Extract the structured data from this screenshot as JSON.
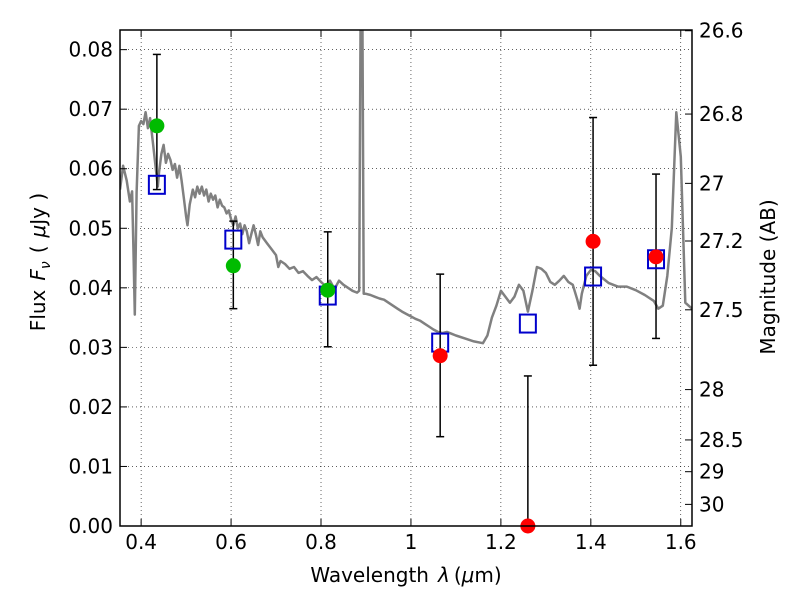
{
  "chart_data": {
    "type": "scatter",
    "xlabel_text": "Wavelength",
    "xlabel_symbol": "λ",
    "xlabel_unit_open": "(",
    "xlabel_unit_mu": "μ",
    "xlabel_unit_rest": "m)",
    "ylabel_text": "Flux",
    "ylabel_symbol": "F",
    "ylabel_sub": "ν",
    "ylabel_unit_open": "(",
    "ylabel_unit_mu": "μ",
    "ylabel_unit_rest": "Jy )",
    "y2label": "Magnitude (AB)",
    "xlim": [
      0.353,
      1.625
    ],
    "ylim": [
      0.0,
      0.0833
    ],
    "grid": true,
    "x_ticks": [
      {
        "value": 0.4,
        "label": "0.4"
      },
      {
        "value": 0.6,
        "label": "0.6"
      },
      {
        "value": 0.8,
        "label": "0.8"
      },
      {
        "value": 1.0,
        "label": "1"
      },
      {
        "value": 1.2,
        "label": "1.2"
      },
      {
        "value": 1.4,
        "label": "1.4"
      },
      {
        "value": 1.6,
        "label": "1.6"
      }
    ],
    "y_ticks": [
      {
        "value": 0.0,
        "label": "0.00"
      },
      {
        "value": 0.01,
        "label": "0.01"
      },
      {
        "value": 0.02,
        "label": "0.02"
      },
      {
        "value": 0.03,
        "label": "0.03"
      },
      {
        "value": 0.04,
        "label": "0.04"
      },
      {
        "value": 0.05,
        "label": "0.05"
      },
      {
        "value": 0.06,
        "label": "0.06"
      },
      {
        "value": 0.07,
        "label": "0.07"
      },
      {
        "value": 0.08,
        "label": "0.08"
      }
    ],
    "y2_ticks": [
      {
        "mag": 26.6,
        "label": "26.6"
      },
      {
        "mag": 26.8,
        "label": "26.8"
      },
      {
        "mag": 27.0,
        "label": "27"
      },
      {
        "mag": 27.2,
        "label": "27.2"
      },
      {
        "mag": 27.5,
        "label": "27.5"
      },
      {
        "mag": 28.0,
        "label": "28"
      },
      {
        "mag": 28.5,
        "label": "28.5"
      },
      {
        "mag": 29.0,
        "label": "29"
      },
      {
        "mag": 30.0,
        "label": "30"
      }
    ],
    "model_color": "#808080",
    "model_sed": [
      [
        0.353,
        0.0565
      ],
      [
        0.36,
        0.0605
      ],
      [
        0.368,
        0.058
      ],
      [
        0.375,
        0.0545
      ],
      [
        0.38,
        0.0562
      ],
      [
        0.383,
        0.046
      ],
      [
        0.386,
        0.0355
      ],
      [
        0.39,
        0.056
      ],
      [
        0.395,
        0.0672
      ],
      [
        0.4,
        0.068
      ],
      [
        0.405,
        0.0675
      ],
      [
        0.41,
        0.0695
      ],
      [
        0.415,
        0.0668
      ],
      [
        0.42,
        0.0685
      ],
      [
        0.427,
        0.0638
      ],
      [
        0.432,
        0.0605
      ],
      [
        0.437,
        0.057
      ],
      [
        0.44,
        0.0595
      ],
      [
        0.445,
        0.0625
      ],
      [
        0.45,
        0.064
      ],
      [
        0.455,
        0.061
      ],
      [
        0.46,
        0.0625
      ],
      [
        0.465,
        0.0615
      ],
      [
        0.47,
        0.0598
      ],
      [
        0.475,
        0.0608
      ],
      [
        0.48,
        0.0585
      ],
      [
        0.485,
        0.0605
      ],
      [
        0.49,
        0.058
      ],
      [
        0.495,
        0.055
      ],
      [
        0.5,
        0.052
      ],
      [
        0.503,
        0.0505
      ],
      [
        0.508,
        0.054
      ],
      [
        0.515,
        0.0565
      ],
      [
        0.52,
        0.0552
      ],
      [
        0.525,
        0.057
      ],
      [
        0.53,
        0.0558
      ],
      [
        0.535,
        0.057
      ],
      [
        0.54,
        0.0555
      ],
      [
        0.545,
        0.0565
      ],
      [
        0.55,
        0.0545
      ],
      [
        0.555,
        0.0558
      ],
      [
        0.56,
        0.0548
      ],
      [
        0.565,
        0.0555
      ],
      [
        0.57,
        0.0535
      ],
      [
        0.575,
        0.0548
      ],
      [
        0.58,
        0.0538
      ],
      [
        0.585,
        0.0535
      ],
      [
        0.59,
        0.0525
      ],
      [
        0.595,
        0.053
      ],
      [
        0.6,
        0.0515
      ],
      [
        0.605,
        0.0505
      ],
      [
        0.61,
        0.052
      ],
      [
        0.615,
        0.05
      ],
      [
        0.62,
        0.0508
      ],
      [
        0.625,
        0.049
      ],
      [
        0.63,
        0.0505
      ],
      [
        0.635,
        0.0495
      ],
      [
        0.64,
        0.0475
      ],
      [
        0.645,
        0.049
      ],
      [
        0.65,
        0.0505
      ],
      [
        0.655,
        0.049
      ],
      [
        0.66,
        0.0472
      ],
      [
        0.665,
        0.0495
      ],
      [
        0.67,
        0.0485
      ],
      [
        0.68,
        0.0475
      ],
      [
        0.69,
        0.0465
      ],
      [
        0.7,
        0.0455
      ],
      [
        0.705,
        0.0435
      ],
      [
        0.71,
        0.0445
      ],
      [
        0.72,
        0.044
      ],
      [
        0.73,
        0.0432
      ],
      [
        0.74,
        0.0435
      ],
      [
        0.75,
        0.0425
      ],
      [
        0.76,
        0.0428
      ],
      [
        0.77,
        0.042
      ],
      [
        0.78,
        0.0413
      ],
      [
        0.79,
        0.0418
      ],
      [
        0.8,
        0.041
      ],
      [
        0.81,
        0.0403
      ],
      [
        0.82,
        0.0412
      ],
      [
        0.83,
        0.0398
      ],
      [
        0.84,
        0.0412
      ],
      [
        0.85,
        0.0405
      ],
      [
        0.86,
        0.04
      ],
      [
        0.87,
        0.0395
      ],
      [
        0.88,
        0.0392
      ],
      [
        0.885,
        0.0395
      ],
      [
        0.888,
        0.086
      ],
      [
        0.892,
        0.086
      ],
      [
        0.895,
        0.039
      ],
      [
        0.9,
        0.039
      ],
      [
        0.91,
        0.0388
      ],
      [
        0.92,
        0.0385
      ],
      [
        0.93,
        0.0382
      ],
      [
        0.94,
        0.038
      ],
      [
        0.95,
        0.0375
      ],
      [
        0.96,
        0.037
      ],
      [
        0.97,
        0.0365
      ],
      [
        0.98,
        0.036
      ],
      [
        0.99,
        0.0356
      ],
      [
        1.0,
        0.0352
      ],
      [
        1.01,
        0.0348
      ],
      [
        1.02,
        0.0345
      ],
      [
        1.03,
        0.034
      ],
      [
        1.04,
        0.0335
      ],
      [
        1.05,
        0.033
      ],
      [
        1.06,
        0.0326
      ],
      [
        1.07,
        0.0324
      ],
      [
        1.08,
        0.0326
      ],
      [
        1.09,
        0.0323
      ],
      [
        1.1,
        0.032
      ],
      [
        1.12,
        0.0315
      ],
      [
        1.14,
        0.031
      ],
      [
        1.16,
        0.0307
      ],
      [
        1.17,
        0.032
      ],
      [
        1.18,
        0.035
      ],
      [
        1.19,
        0.037
      ],
      [
        1.2,
        0.0395
      ],
      [
        1.21,
        0.0385
      ],
      [
        1.22,
        0.0375
      ],
      [
        1.23,
        0.0385
      ],
      [
        1.24,
        0.0405
      ],
      [
        1.25,
        0.0395
      ],
      [
        1.26,
        0.036
      ],
      [
        1.27,
        0.0395
      ],
      [
        1.28,
        0.0435
      ],
      [
        1.29,
        0.0432
      ],
      [
        1.3,
        0.0425
      ],
      [
        1.31,
        0.041
      ],
      [
        1.32,
        0.0405
      ],
      [
        1.33,
        0.0412
      ],
      [
        1.34,
        0.042
      ],
      [
        1.35,
        0.041
      ],
      [
        1.36,
        0.0405
      ],
      [
        1.37,
        0.038
      ],
      [
        1.375,
        0.0365
      ],
      [
        1.38,
        0.039
      ],
      [
        1.39,
        0.042
      ],
      [
        1.4,
        0.043
      ],
      [
        1.41,
        0.0428
      ],
      [
        1.42,
        0.042
      ],
      [
        1.44,
        0.0408
      ],
      [
        1.46,
        0.0402
      ],
      [
        1.48,
        0.0402
      ],
      [
        1.5,
        0.0396
      ],
      [
        1.52,
        0.0388
      ],
      [
        1.54,
        0.0378
      ],
      [
        1.55,
        0.0365
      ],
      [
        1.56,
        0.037
      ],
      [
        1.57,
        0.042
      ],
      [
        1.58,
        0.05
      ],
      [
        1.59,
        0.0695
      ],
      [
        1.6,
        0.062
      ],
      [
        1.61,
        0.0375
      ],
      [
        1.625,
        0.0365
      ]
    ],
    "error_bars": [
      {
        "x": 0.435,
        "y": 0.0672,
        "low": 0.0565,
        "high": 0.0792
      },
      {
        "x": 0.605,
        "y": 0.0437,
        "low": 0.0365,
        "high": 0.0512
      },
      {
        "x": 0.815,
        "y": 0.0396,
        "low": 0.0301,
        "high": 0.0494
      },
      {
        "x": 1.065,
        "y": 0.0286,
        "low": 0.015,
        "high": 0.0423
      },
      {
        "x": 1.26,
        "y": 0.0,
        "low": 0.0,
        "high": 0.0252
      },
      {
        "x": 1.405,
        "y": 0.0478,
        "low": 0.027,
        "high": 0.0686
      },
      {
        "x": 1.545,
        "y": 0.0452,
        "low": 0.0315,
        "high": 0.0591
      }
    ],
    "series": [
      {
        "marker": "open-square",
        "color": "#0000cc",
        "points": [
          [
            0.435,
            0.0573
          ],
          [
            0.605,
            0.0481
          ],
          [
            0.815,
            0.0387
          ],
          [
            1.065,
            0.0308
          ],
          [
            1.26,
            0.034
          ],
          [
            1.405,
            0.0419
          ],
          [
            1.545,
            0.0448
          ]
        ]
      },
      {
        "marker": "filled-circle",
        "color": "#00bb00",
        "points": [
          [
            0.435,
            0.0672
          ],
          [
            0.605,
            0.0437
          ],
          [
            0.815,
            0.0396
          ]
        ]
      },
      {
        "marker": "filled-circle",
        "color": "#ff0000",
        "points": [
          [
            1.065,
            0.0286
          ],
          [
            1.26,
            0.0
          ],
          [
            1.405,
            0.0478
          ],
          [
            1.545,
            0.0452
          ]
        ]
      }
    ]
  }
}
